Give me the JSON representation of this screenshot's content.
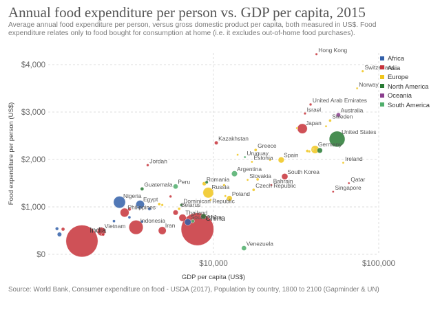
{
  "header": {
    "title": "Annual food expenditure per person vs. GDP per capita, 2015",
    "subtitle": "Average annual food expenditure per person, versus gross domestic product per capita, both measured in US$. Food expenditure relates only to food bought for consumption at home (i.e. it excludes out-of-home food purchases)."
  },
  "footer": {
    "source": "Source: World Bank, Consumer expenditure on food - USDA (2017), Population by country, 1800 to 2100 (Gapminder & UN)"
  },
  "colors": {
    "Africa": "#3360a9",
    "Asia": "#c7323a",
    "Europe": "#f0c51c",
    "North America": "#287a34",
    "Oceania": "#8a3e8d",
    "South America": "#4fae6b"
  },
  "legend": [
    {
      "label": "Africa",
      "color": "#3360a9"
    },
    {
      "label": "Asia",
      "color": "#c7323a"
    },
    {
      "label": "Europe",
      "color": "#f0c51c"
    },
    {
      "label": "North America",
      "color": "#287a34"
    },
    {
      "label": "Oceania",
      "color": "#8a3e8d"
    },
    {
      "label": "South America",
      "color": "#4fae6b"
    }
  ],
  "chart_data": {
    "type": "scatter",
    "title": "Annual food expenditure per person vs. GDP per capita, 2015",
    "xlabel": "GDP per capita (US$)",
    "ylabel": "Food expenditure per person (US$)",
    "xscale": "log",
    "xlim": [
      1000,
      100000
    ],
    "ylim": [
      0,
      4300
    ],
    "xticks": [
      {
        "value": 10000,
        "label": "$10,000"
      },
      {
        "value": 100000,
        "label": "$100,000"
      }
    ],
    "yticks": [
      {
        "value": 0,
        "label": "$0"
      },
      {
        "value": 1000,
        "label": "$1,000"
      },
      {
        "value": 2000,
        "label": "$2,000"
      },
      {
        "value": 3000,
        "label": "$3,000"
      },
      {
        "value": 4000,
        "label": "$4,000"
      }
    ],
    "grid": true,
    "legend_position": "right",
    "points": [
      {
        "label": "India",
        "x": 1600,
        "y": 280,
        "pop": 1311,
        "region": "Asia",
        "show_label": true
      },
      {
        "label": "China",
        "x": 8000,
        "y": 530,
        "pop": 1371,
        "region": "Asia",
        "show_label": true
      },
      {
        "label": "Vietnam",
        "x": 2100,
        "y": 480,
        "pop": 92,
        "region": "Asia",
        "show_label": true
      },
      {
        "label": "Indonesia",
        "x": 3400,
        "y": 570,
        "pop": 258,
        "region": "Asia",
        "show_label": true
      },
      {
        "label": "Philippines",
        "x": 2900,
        "y": 880,
        "pop": 101,
        "region": "Asia",
        "show_label": true
      },
      {
        "label": "Nigeria",
        "x": 2700,
        "y": 1100,
        "pop": 182,
        "region": "Africa",
        "show_label": true
      },
      {
        "label": "Egypt",
        "x": 3600,
        "y": 1050,
        "pop": 92,
        "region": "Africa",
        "show_label": true
      },
      {
        "label": "Iran",
        "x": 4900,
        "y": 500,
        "pop": 79,
        "region": "Asia",
        "show_label": true
      },
      {
        "label": "South Africa",
        "x": 7000,
        "y": 680,
        "pop": 55,
        "region": "Africa",
        "show_label": true
      },
      {
        "label": "Thailand",
        "x": 6500,
        "y": 770,
        "pop": 68,
        "region": "Asia",
        "show_label": true
      },
      {
        "label": "Belarus",
        "x": 6200,
        "y": 960,
        "pop": 9.5,
        "region": "Europe",
        "show_label": true
      },
      {
        "label": "Dominican Republic",
        "x": 6400,
        "y": 1040,
        "pop": 10.5,
        "region": "North America",
        "show_label": true
      },
      {
        "label": "Guatemala",
        "x": 3700,
        "y": 1380,
        "pop": 16,
        "region": "North America",
        "show_label": true
      },
      {
        "label": "Peru",
        "x": 5900,
        "y": 1430,
        "pop": 31,
        "region": "South America",
        "show_label": true
      },
      {
        "label": "Jordan",
        "x": 4000,
        "y": 1880,
        "pop": 9,
        "region": "Asia",
        "show_label": true
      },
      {
        "label": "Romania",
        "x": 8800,
        "y": 1490,
        "pop": 20,
        "region": "Europe",
        "show_label": true
      },
      {
        "label": "Russia",
        "x": 9300,
        "y": 1300,
        "pop": 144,
        "region": "Europe",
        "show_label": true
      },
      {
        "label": "Poland",
        "x": 12500,
        "y": 1180,
        "pop": 38,
        "region": "Europe",
        "show_label": true
      },
      {
        "label": "Argentina",
        "x": 13400,
        "y": 1700,
        "pop": 43,
        "region": "South America",
        "show_label": true
      },
      {
        "label": "Kazakhstan",
        "x": 10400,
        "y": 2350,
        "pop": 17.5,
        "region": "Asia",
        "show_label": true
      },
      {
        "label": "Uruguay",
        "x": 15500,
        "y": 2050,
        "pop": 3.4,
        "region": "South America",
        "show_label": true
      },
      {
        "label": "Estonia",
        "x": 17100,
        "y": 1950,
        "pop": 1.3,
        "region": "Europe",
        "show_label": true
      },
      {
        "label": "Greece",
        "x": 18000,
        "y": 2200,
        "pop": 11,
        "region": "Europe",
        "show_label": true
      },
      {
        "label": "Slovakia",
        "x": 16100,
        "y": 1570,
        "pop": 5.4,
        "region": "Europe",
        "show_label": true
      },
      {
        "label": "Czech Republic",
        "x": 17500,
        "y": 1360,
        "pop": 10.5,
        "region": "Europe",
        "show_label": true
      },
      {
        "label": "Venezuela",
        "x": 15300,
        "y": 130,
        "pop": 31,
        "region": "South America",
        "show_label": true
      },
      {
        "label": "Bahrain",
        "x": 22400,
        "y": 1460,
        "pop": 1.4,
        "region": "Asia",
        "show_label": true
      },
      {
        "label": "South Korea",
        "x": 27000,
        "y": 1640,
        "pop": 50,
        "region": "Asia",
        "show_label": true
      },
      {
        "label": "Spain",
        "x": 25700,
        "y": 1990,
        "pop": 46,
        "region": "Europe",
        "show_label": true
      },
      {
        "label": "Japan",
        "x": 34500,
        "y": 2650,
        "pop": 127,
        "region": "Asia",
        "show_label": true
      },
      {
        "label": "Israel",
        "x": 35800,
        "y": 2970,
        "pop": 8,
        "region": "Asia",
        "show_label": true
      },
      {
        "label": "Germany",
        "x": 41200,
        "y": 2210,
        "pop": 81,
        "region": "Europe",
        "show_label": true
      },
      {
        "label": "United States",
        "x": 56000,
        "y": 2430,
        "pop": 320,
        "region": "North America",
        "show_label": true
      },
      {
        "label": "United Arab Emirates",
        "x": 38700,
        "y": 3160,
        "pop": 9.2,
        "region": "Asia",
        "show_label": true
      },
      {
        "label": "Australia",
        "x": 57000,
        "y": 2940,
        "pop": 24,
        "region": "Oceania",
        "show_label": true
      },
      {
        "label": "Sweden",
        "x": 50800,
        "y": 2820,
        "pop": 9.8,
        "region": "Europe",
        "show_label": true
      },
      {
        "label": "Ireland",
        "x": 61000,
        "y": 1930,
        "pop": 4.7,
        "region": "Europe",
        "show_label": true
      },
      {
        "label": "Qatar",
        "x": 66000,
        "y": 1500,
        "pop": 2.5,
        "region": "Asia",
        "show_label": true
      },
      {
        "label": "Singapore",
        "x": 53000,
        "y": 1320,
        "pop": 5.5,
        "region": "Asia",
        "show_label": true
      },
      {
        "label": "Norway",
        "x": 74000,
        "y": 3500,
        "pop": 5.2,
        "region": "Europe",
        "show_label": true
      },
      {
        "label": "Switzerland",
        "x": 80000,
        "y": 3860,
        "pop": 8.3,
        "region": "Europe",
        "show_label": true
      },
      {
        "label": "Hong Kong",
        "x": 42000,
        "y": 4220,
        "pop": 7.3,
        "region": "Asia",
        "show_label": true
      },
      {
        "label": "",
        "x": 1130,
        "y": 540,
        "pop": 14,
        "region": "Africa",
        "show_label": false
      },
      {
        "label": "",
        "x": 1170,
        "y": 420,
        "pop": 25,
        "region": "Africa",
        "show_label": false
      },
      {
        "label": "",
        "x": 1230,
        "y": 530,
        "pop": 16,
        "region": "Asia",
        "show_label": false
      },
      {
        "label": "",
        "x": 2150,
        "y": 420,
        "pop": 12,
        "region": "Asia",
        "show_label": false
      },
      {
        "label": "",
        "x": 2500,
        "y": 700,
        "pop": 10,
        "region": "Africa",
        "show_label": false
      },
      {
        "label": "",
        "x": 3100,
        "y": 950,
        "pop": 14,
        "region": "Asia",
        "show_label": false
      },
      {
        "label": "",
        "x": 3100,
        "y": 780,
        "pop": 10,
        "region": "Africa",
        "show_label": false
      },
      {
        "label": "",
        "x": 3500,
        "y": 990,
        "pop": 6,
        "region": "Africa",
        "show_label": false
      },
      {
        "label": "",
        "x": 3700,
        "y": 690,
        "pop": 11,
        "region": "Africa",
        "show_label": false
      },
      {
        "label": "",
        "x": 4100,
        "y": 960,
        "pop": 14,
        "region": "Africa",
        "show_label": false
      },
      {
        "label": "",
        "x": 4700,
        "y": 1060,
        "pop": 10,
        "region": "Europe",
        "show_label": false
      },
      {
        "label": "",
        "x": 4900,
        "y": 1040,
        "pop": 8,
        "region": "Europe",
        "show_label": false
      },
      {
        "label": "",
        "x": 5500,
        "y": 1220,
        "pop": 9,
        "region": "Asia",
        "show_label": false
      },
      {
        "label": "",
        "x": 5900,
        "y": 880,
        "pop": 34,
        "region": "Asia",
        "show_label": false
      },
      {
        "label": "",
        "x": 7500,
        "y": 700,
        "pop": 15,
        "region": "South America",
        "show_label": false
      },
      {
        "label": "",
        "x": 8700,
        "y": 800,
        "pop": 35,
        "region": "North America",
        "show_label": false
      },
      {
        "label": "",
        "x": 9100,
        "y": 1520,
        "pop": 12,
        "region": "North America",
        "show_label": false
      },
      {
        "label": "",
        "x": 9600,
        "y": 1150,
        "pop": 7,
        "region": "Europe",
        "show_label": false
      },
      {
        "label": "",
        "x": 11600,
        "y": 1460,
        "pop": 8,
        "region": "Europe",
        "show_label": false
      },
      {
        "label": "",
        "x": 11800,
        "y": 1230,
        "pop": 4,
        "region": "Europe",
        "show_label": false
      },
      {
        "label": "",
        "x": 14000,
        "y": 2100,
        "pop": 4,
        "region": "Europe",
        "show_label": false
      },
      {
        "label": "",
        "x": 18500,
        "y": 1580,
        "pop": 10,
        "region": "Europe",
        "show_label": false
      },
      {
        "label": "",
        "x": 22000,
        "y": 1990,
        "pop": 4,
        "region": "Europe",
        "show_label": false
      },
      {
        "label": "",
        "x": 32000,
        "y": 2660,
        "pop": 4.5,
        "region": "Europe",
        "show_label": false
      },
      {
        "label": "",
        "x": 37000,
        "y": 2180,
        "pop": 11,
        "region": "Europe",
        "show_label": false
      },
      {
        "label": "",
        "x": 38000,
        "y": 2170,
        "pop": 8.6,
        "region": "Europe",
        "show_label": false
      },
      {
        "label": "",
        "x": 40000,
        "y": 2220,
        "pop": 6,
        "region": "Europe",
        "show_label": false
      },
      {
        "label": "",
        "x": 44000,
        "y": 2190,
        "pop": 36,
        "region": "North America",
        "show_label": false
      },
      {
        "label": "",
        "x": 48000,
        "y": 2700,
        "pop": 5.7,
        "region": "Europe",
        "show_label": false
      }
    ]
  }
}
